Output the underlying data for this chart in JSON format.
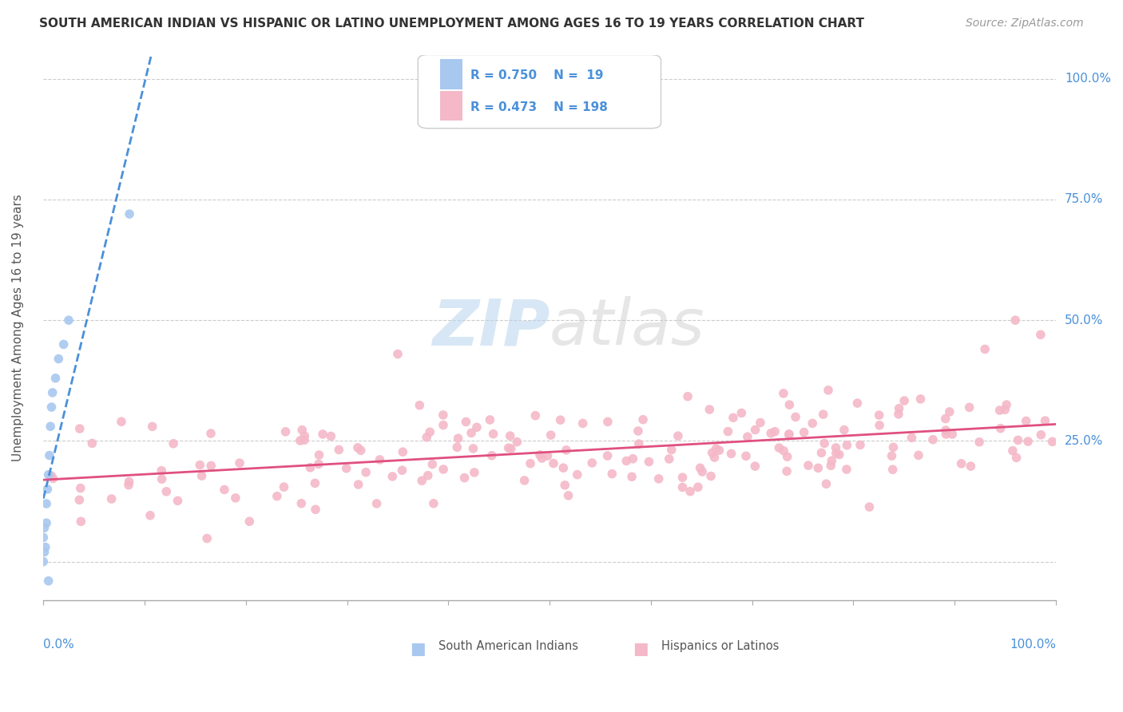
{
  "title": "SOUTH AMERICAN INDIAN VS HISPANIC OR LATINO UNEMPLOYMENT AMONG AGES 16 TO 19 YEARS CORRELATION CHART",
  "source": "Source: ZipAtlas.com",
  "ylabel": "Unemployment Among Ages 16 to 19 years",
  "ytick_labels": [
    "",
    "25.0%",
    "50.0%",
    "75.0%",
    "100.0%"
  ],
  "ytick_positions": [
    0,
    0.25,
    0.5,
    0.75,
    1.0
  ],
  "xlim": [
    0,
    1.0
  ],
  "ylim": [
    -0.05,
    1.05
  ],
  "watermark_zip": "ZIP",
  "watermark_atlas": "atlas",
  "legend_blue_R": "R = 0.750",
  "legend_blue_N": "N =  19",
  "legend_pink_R": "R = 0.473",
  "legend_pink_N": "N = 198",
  "blue_scatter_color": "#a8c8f0",
  "blue_line_color": "#4a90d9",
  "pink_scatter_color": "#f4b8c8",
  "pink_line_color": "#e05080",
  "background_color": "#ffffff",
  "grid_color": "#cccccc",
  "title_color": "#333333",
  "source_color": "#999999",
  "blue_points_x": [
    0.0,
    0.0,
    0.001,
    0.001,
    0.002,
    0.003,
    0.003,
    0.004,
    0.005,
    0.006,
    0.007,
    0.008,
    0.009,
    0.012,
    0.015,
    0.02,
    0.025,
    0.085,
    0.005
  ],
  "blue_points_y": [
    0.0,
    0.05,
    0.02,
    0.07,
    0.03,
    0.08,
    0.12,
    0.15,
    0.18,
    0.22,
    0.28,
    0.32,
    0.35,
    0.38,
    0.42,
    0.45,
    0.5,
    0.72,
    -0.04
  ]
}
